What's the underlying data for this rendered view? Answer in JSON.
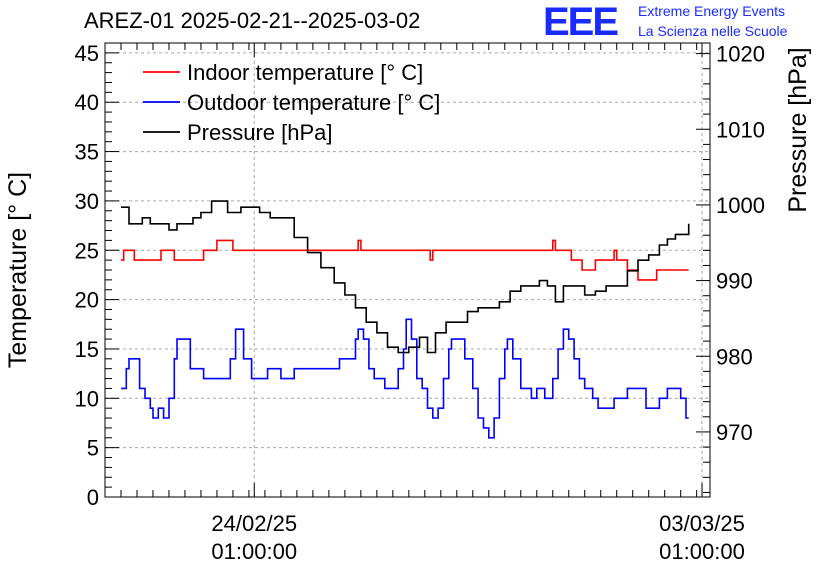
{
  "title": "AREZ-01 2025-02-21--2025-03-02",
  "logo": {
    "mark": "EEE",
    "line1": "Extreme Energy Events",
    "line2": "La Scienza nelle Scuole",
    "color": "#1a2bff"
  },
  "chart_data": {
    "type": "line",
    "title": "AREZ-01 2025-02-21--2025-03-02",
    "ylabel": "Temperature [° C]",
    "y2label": "Pressure [hPa]",
    "ylim": [
      0,
      46
    ],
    "y2lim": [
      961.4,
      1021.4
    ],
    "xlim": [
      "2025-02-21T17:00",
      "2025-03-03T04:00"
    ],
    "y_ticks": [
      "0",
      "5",
      "10",
      "15",
      "20",
      "25",
      "30",
      "35",
      "40",
      "45"
    ],
    "y2_ticks": [
      "970",
      "980",
      "990",
      "1000",
      "1010",
      "1020"
    ],
    "x_ticks": [
      {
        "date": "24/02/25",
        "time": "01:00:00",
        "at": "2025-02-24T01:00"
      },
      {
        "date": "03/03/25",
        "time": "01:00:00",
        "at": "2025-03-03T01:00"
      }
    ],
    "grid": true,
    "legend_position": "top-left",
    "series": [
      {
        "name": "Indoor temperature [° C]",
        "axis": "left",
        "color": "#ff0000",
        "points": [
          [
            "2025-02-21T23:00",
            24
          ],
          [
            "2025-02-22T00:00",
            25
          ],
          [
            "2025-02-22T03:00",
            25
          ],
          [
            "2025-02-22T04:00",
            24
          ],
          [
            "2025-02-22T13:00",
            24
          ],
          [
            "2025-02-22T14:00",
            25
          ],
          [
            "2025-02-22T18:00",
            25
          ],
          [
            "2025-02-22T19:00",
            24
          ],
          [
            "2025-02-23T05:00",
            24
          ],
          [
            "2025-02-23T06:00",
            25
          ],
          [
            "2025-02-23T10:00",
            25
          ],
          [
            "2025-02-23T11:00",
            26
          ],
          [
            "2025-02-23T16:00",
            26
          ],
          [
            "2025-02-23T17:00",
            25
          ],
          [
            "2025-02-25T15:00",
            25
          ],
          [
            "2025-02-25T16:00",
            26
          ],
          [
            "2025-02-25T17:00",
            25
          ],
          [
            "2025-02-26T18:00",
            25
          ],
          [
            "2025-02-26T19:00",
            24
          ],
          [
            "2025-02-26T20:00",
            25
          ],
          [
            "2025-02-28T16:00",
            25
          ],
          [
            "2025-02-28T17:00",
            26
          ],
          [
            "2025-02-28T18:00",
            25
          ],
          [
            "2025-02-28T23:00",
            25
          ],
          [
            "2025-03-01T00:00",
            24
          ],
          [
            "2025-03-01T03:00",
            24
          ],
          [
            "2025-03-01T04:00",
            23
          ],
          [
            "2025-03-01T08:00",
            23
          ],
          [
            "2025-03-01T09:00",
            24
          ],
          [
            "2025-03-01T15:00",
            24
          ],
          [
            "2025-03-01T16:00",
            25
          ],
          [
            "2025-03-01T17:00",
            24
          ],
          [
            "2025-03-01T20:00",
            24
          ],
          [
            "2025-03-01T21:00",
            23
          ],
          [
            "2025-03-02T00:00",
            23
          ],
          [
            "2025-03-02T01:00",
            22
          ],
          [
            "2025-03-02T07:00",
            22
          ],
          [
            "2025-03-02T08:00",
            23
          ],
          [
            "2025-03-02T20:00",
            23
          ]
        ]
      },
      {
        "name": "Outdoor temperature [° C]",
        "axis": "left",
        "color": "#0000ff",
        "points": [
          [
            "2025-02-21T23:00",
            11
          ],
          [
            "2025-02-22T01:00",
            13
          ],
          [
            "2025-02-22T02:00",
            14
          ],
          [
            "2025-02-22T04:00",
            14
          ],
          [
            "2025-02-22T06:00",
            11
          ],
          [
            "2025-02-22T08:00",
            10
          ],
          [
            "2025-02-22T10:00",
            9
          ],
          [
            "2025-02-22T11:00",
            8
          ],
          [
            "2025-02-22T13:00",
            9
          ],
          [
            "2025-02-22T15:00",
            8
          ],
          [
            "2025-02-22T17:00",
            10
          ],
          [
            "2025-02-22T19:00",
            14
          ],
          [
            "2025-02-22T20:00",
            16
          ],
          [
            "2025-02-22T22:00",
            16
          ],
          [
            "2025-02-23T01:00",
            13
          ],
          [
            "2025-02-23T06:00",
            12
          ],
          [
            "2025-02-23T14:00",
            12
          ],
          [
            "2025-02-23T16:00",
            14
          ],
          [
            "2025-02-23T18:00",
            17
          ],
          [
            "2025-02-23T19:00",
            17
          ],
          [
            "2025-02-23T21:00",
            14
          ],
          [
            "2025-02-24T00:00",
            12
          ],
          [
            "2025-02-24T05:00",
            12
          ],
          [
            "2025-02-24T06:00",
            13
          ],
          [
            "2025-02-24T10:00",
            13
          ],
          [
            "2025-02-24T11:00",
            12
          ],
          [
            "2025-02-24T15:00",
            12
          ],
          [
            "2025-02-24T16:00",
            13
          ],
          [
            "2025-02-25T08:00",
            13
          ],
          [
            "2025-02-25T09:00",
            14
          ],
          [
            "2025-02-25T14:00",
            14
          ],
          [
            "2025-02-25T15:00",
            16
          ],
          [
            "2025-02-25T16:00",
            17
          ],
          [
            "2025-02-25T18:00",
            16
          ],
          [
            "2025-02-25T20:00",
            13
          ],
          [
            "2025-02-25T22:00",
            12
          ],
          [
            "2025-02-26T02:00",
            11
          ],
          [
            "2025-02-26T05:00",
            11
          ],
          [
            "2025-02-26T07:00",
            13
          ],
          [
            "2025-02-26T09:00",
            15
          ],
          [
            "2025-02-26T10:00",
            18
          ],
          [
            "2025-02-26T12:00",
            16
          ],
          [
            "2025-02-26T14:00",
            12
          ],
          [
            "2025-02-26T16:00",
            11
          ],
          [
            "2025-02-26T18:00",
            9
          ],
          [
            "2025-02-26T20:00",
            8
          ],
          [
            "2025-02-26T22:00",
            9
          ],
          [
            "2025-02-27T00:00",
            12
          ],
          [
            "2025-02-27T02:00",
            15
          ],
          [
            "2025-02-27T03:00",
            16
          ],
          [
            "2025-02-27T06:00",
            16
          ],
          [
            "2025-02-27T08:00",
            14
          ],
          [
            "2025-02-27T11:00",
            11
          ],
          [
            "2025-02-27T13:00",
            8
          ],
          [
            "2025-02-27T15:00",
            7
          ],
          [
            "2025-02-27T17:00",
            6
          ],
          [
            "2025-02-27T19:00",
            8
          ],
          [
            "2025-02-27T21:00",
            12
          ],
          [
            "2025-02-27T23:00",
            15
          ],
          [
            "2025-02-28T00:00",
            16
          ],
          [
            "2025-02-28T02:00",
            14
          ],
          [
            "2025-02-28T05:00",
            11
          ],
          [
            "2025-02-28T07:00",
            11
          ],
          [
            "2025-02-28T09:00",
            10
          ],
          [
            "2025-02-28T11:00",
            11
          ],
          [
            "2025-02-28T14:00",
            10
          ],
          [
            "2025-02-28T17:00",
            12
          ],
          [
            "2025-02-28T19:00",
            15
          ],
          [
            "2025-02-28T21:00",
            17
          ],
          [
            "2025-02-28T23:00",
            16
          ],
          [
            "2025-03-01T01:00",
            14
          ],
          [
            "2025-03-01T03:00",
            12
          ],
          [
            "2025-03-01T05:00",
            11
          ],
          [
            "2025-03-01T08:00",
            10
          ],
          [
            "2025-03-01T10:00",
            9
          ],
          [
            "2025-03-01T14:00",
            9
          ],
          [
            "2025-03-01T16:00",
            10
          ],
          [
            "2025-03-01T18:00",
            10
          ],
          [
            "2025-03-01T21:00",
            11
          ],
          [
            "2025-03-02T01:00",
            11
          ],
          [
            "2025-03-02T04:00",
            9
          ],
          [
            "2025-03-02T07:00",
            9
          ],
          [
            "2025-03-02T09:00",
            10
          ],
          [
            "2025-03-02T12:00",
            11
          ],
          [
            "2025-03-02T15:00",
            11
          ],
          [
            "2025-03-02T17:00",
            10
          ],
          [
            "2025-03-02T19:00",
            8
          ],
          [
            "2025-03-02T20:00",
            8
          ]
        ]
      },
      {
        "name": "Pressure [hPa]",
        "axis": "right",
        "color": "#000000",
        "points": [
          [
            "2025-02-21T23:00",
            999.7
          ],
          [
            "2025-02-22T02:00",
            997.5
          ],
          [
            "2025-02-22T05:00",
            997.5
          ],
          [
            "2025-02-22T07:00",
            998.3
          ],
          [
            "2025-02-22T10:00",
            997.5
          ],
          [
            "2025-02-22T14:00",
            997.5
          ],
          [
            "2025-02-22T17:00",
            996.7
          ],
          [
            "2025-02-22T20:00",
            997.5
          ],
          [
            "2025-02-22T23:00",
            997.5
          ],
          [
            "2025-02-23T02:00",
            998.3
          ],
          [
            "2025-02-23T05:00",
            999.0
          ],
          [
            "2025-02-23T09:00",
            1000.5
          ],
          [
            "2025-02-23T12:00",
            1000.5
          ],
          [
            "2025-02-23T15:00",
            999.0
          ],
          [
            "2025-02-23T20:00",
            999.7
          ],
          [
            "2025-02-23T23:00",
            999.7
          ],
          [
            "2025-02-24T03:00",
            999.0
          ],
          [
            "2025-02-24T07:00",
            998.3
          ],
          [
            "2025-02-24T11:00",
            998.3
          ],
          [
            "2025-02-24T16:00",
            995.7
          ],
          [
            "2025-02-24T21:00",
            993.7
          ],
          [
            "2025-02-25T02:00",
            991.7
          ],
          [
            "2025-02-25T07:00",
            989.7
          ],
          [
            "2025-02-25T11:00",
            988.1
          ],
          [
            "2025-02-25T15:00",
            986.4
          ],
          [
            "2025-02-25T19:00",
            984.5
          ],
          [
            "2025-02-25T23:00",
            983.1
          ],
          [
            "2025-02-26T03:00",
            981.2
          ],
          [
            "2025-02-26T07:00",
            980.5
          ],
          [
            "2025-02-26T11:00",
            981.2
          ],
          [
            "2025-02-26T15:00",
            982.5
          ],
          [
            "2025-02-26T18:00",
            980.5
          ],
          [
            "2025-02-26T21:00",
            983.1
          ],
          [
            "2025-02-27T01:00",
            984.5
          ],
          [
            "2025-02-27T05:00",
            984.5
          ],
          [
            "2025-02-27T09:00",
            985.9
          ],
          [
            "2025-02-27T13:00",
            986.4
          ],
          [
            "2025-02-27T17:00",
            986.4
          ],
          [
            "2025-02-27T21:00",
            987.2
          ],
          [
            "2025-02-28T01:00",
            988.6
          ],
          [
            "2025-02-28T05:00",
            989.3
          ],
          [
            "2025-02-28T09:00",
            989.3
          ],
          [
            "2025-02-28T12:00",
            990.0
          ],
          [
            "2025-02-28T15:00",
            989.3
          ],
          [
            "2025-02-28T18:00",
            987.2
          ],
          [
            "2025-02-28T21:00",
            989.3
          ],
          [
            "2025-03-01T01:00",
            989.3
          ],
          [
            "2025-03-01T05:00",
            988.1
          ],
          [
            "2025-03-01T09:00",
            988.6
          ],
          [
            "2025-03-01T13:00",
            989.3
          ],
          [
            "2025-03-01T17:00",
            989.3
          ],
          [
            "2025-03-01T21:00",
            991.3
          ],
          [
            "2025-03-02T01:00",
            992.7
          ],
          [
            "2025-03-02T05:00",
            993.4
          ],
          [
            "2025-03-02T09:00",
            994.7
          ],
          [
            "2025-03-02T12:00",
            995.5
          ],
          [
            "2025-03-02T15:00",
            996.1
          ],
          [
            "2025-03-02T18:00",
            996.1
          ],
          [
            "2025-03-02T20:00",
            997.5
          ]
        ]
      }
    ]
  }
}
